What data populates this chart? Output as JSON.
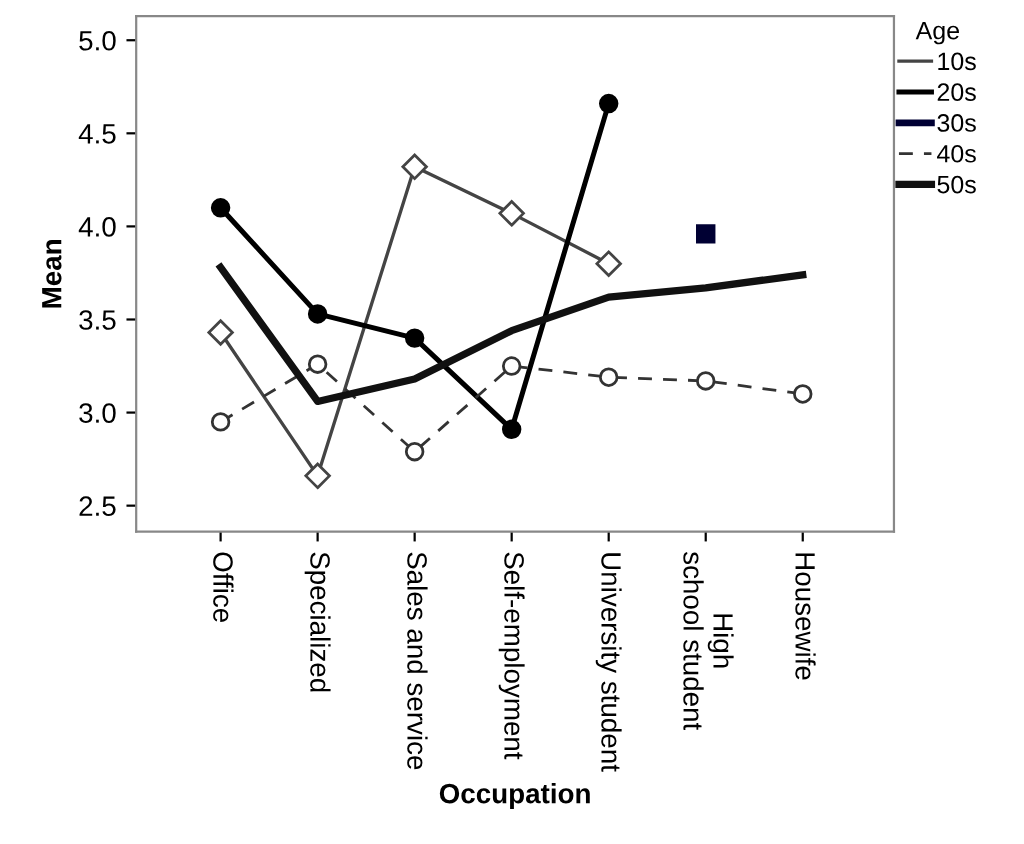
{
  "chart_data": {
    "type": "line",
    "xlabel": "Occupation",
    "ylabel": "Mean",
    "legend_title": "Age",
    "legend": "right",
    "categories": [
      "Office",
      "Specialized",
      "Sales and service",
      "Self-employment",
      "University student",
      "High\nschool student",
      "Housewife"
    ],
    "ylim": [
      2.36,
      5.13
    ],
    "yticks": [
      {
        "value": 2.5,
        "label": "2.5"
      },
      {
        "value": 3.0,
        "label": "3.0"
      },
      {
        "value": 3.5,
        "label": "3.5"
      },
      {
        "value": 4.0,
        "label": "4.0"
      },
      {
        "value": 4.5,
        "label": "4.5"
      },
      {
        "value": 5.0,
        "label": "5.0"
      }
    ],
    "grid": false,
    "series": [
      {
        "name": "10s",
        "color": "#444444",
        "marker": "diamond",
        "line_style": "solid",
        "values": [
          3.43,
          2.66,
          4.32,
          4.07,
          3.8,
          null,
          null
        ]
      },
      {
        "name": "20s",
        "color": "#000000",
        "marker": "circle",
        "line_style": "solid",
        "values": [
          4.1,
          3.53,
          3.4,
          2.91,
          4.66,
          null,
          null
        ]
      },
      {
        "name": "30s",
        "color": "#000033",
        "marker": "square",
        "line_style": "solid",
        "values": [
          null,
          null,
          null,
          null,
          null,
          3.96,
          null
        ]
      },
      {
        "name": "40s",
        "color": "#333333",
        "marker": "circle",
        "line_style": "dashed",
        "values": [
          2.95,
          3.26,
          2.79,
          3.25,
          3.19,
          3.17,
          3.1
        ]
      },
      {
        "name": "50s",
        "color": "#111111",
        "marker": "none",
        "line_style": "solid",
        "values": [
          3.78,
          3.06,
          3.18,
          3.44,
          3.62,
          3.67,
          3.74
        ]
      }
    ]
  }
}
